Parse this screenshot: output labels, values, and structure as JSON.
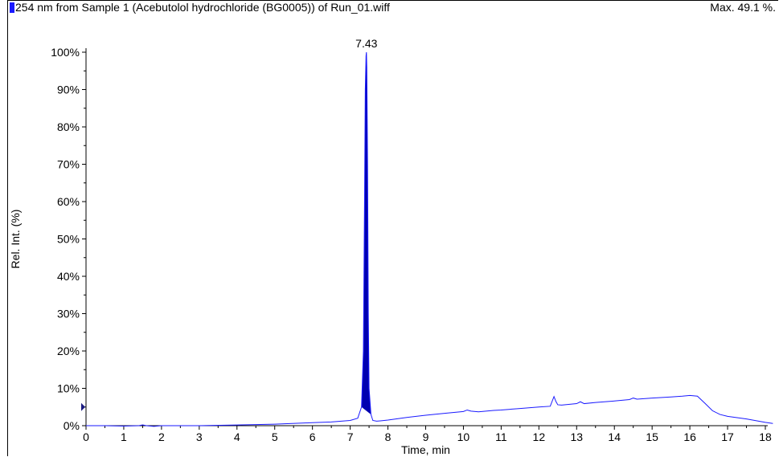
{
  "header": {
    "title": "254 nm from Sample 1 (Acebutolol hydrochloride (BG0005)) of Run_01.wiff",
    "max_label": "Max. 49.1 %."
  },
  "colors": {
    "trace": "#1a1aff",
    "peak_fill": "#0000b0"
  },
  "chart_data": {
    "type": "line",
    "title": "254 nm from Sample 1 (Acebutolol hydrochloride (BG0005)) of Run_01.wiff",
    "xlabel": "Time, min",
    "ylabel": "Rel. Int. (%)",
    "xlim": [
      0,
      18.2
    ],
    "ylim": [
      0,
      100
    ],
    "x_ticks": [
      0,
      1,
      2,
      3,
      4,
      5,
      6,
      7,
      8,
      9,
      10,
      11,
      12,
      13,
      14,
      15,
      16,
      17,
      18
    ],
    "y_ticks": [
      0,
      10,
      20,
      30,
      40,
      50,
      60,
      70,
      80,
      90,
      100
    ],
    "y_tick_format": "%",
    "grid": false,
    "series": [
      {
        "x": [
          0.0,
          0.5,
          1.0,
          1.4,
          1.5,
          1.6,
          1.8,
          2.0,
          3.0,
          4.0,
          5.0,
          6.0,
          6.5,
          7.0,
          7.2,
          7.3,
          7.35,
          7.38,
          7.4,
          7.42,
          7.43,
          7.44,
          7.46,
          7.48,
          7.5,
          7.55,
          7.6,
          7.7,
          7.8,
          8.0,
          8.5,
          9.0,
          9.5,
          10.0,
          10.1,
          10.2,
          10.4,
          10.8,
          11.0,
          11.5,
          12.0,
          12.3,
          12.4,
          12.45,
          12.5,
          12.6,
          13.0,
          13.1,
          13.2,
          13.5,
          14.0,
          14.4,
          14.5,
          14.6,
          15.0,
          15.5,
          15.8,
          16.0,
          16.2,
          16.4,
          16.6,
          16.8,
          17.0,
          17.5,
          18.0,
          18.2
        ],
        "y": [
          0,
          0,
          -0.1,
          0,
          0.2,
          0,
          -0.2,
          0,
          0,
          0.2,
          0.4,
          0.8,
          1.0,
          1.4,
          2.0,
          5,
          20,
          60,
          90,
          99,
          100,
          96,
          70,
          30,
          10,
          3,
          1.4,
          1.2,
          1.3,
          1.5,
          2.2,
          2.8,
          3.3,
          3.8,
          4.2,
          3.9,
          3.7,
          4.1,
          4.2,
          4.6,
          5.0,
          5.2,
          7.8,
          6.5,
          5.6,
          5.5,
          5.9,
          6.4,
          5.9,
          6.2,
          6.6,
          7.0,
          7.4,
          7.1,
          7.4,
          7.7,
          7.9,
          8.1,
          7.9,
          6.0,
          4.0,
          3.0,
          2.5,
          1.8,
          0.9,
          0.6
        ]
      }
    ],
    "annotations": [
      {
        "text": "7.43",
        "x": 7.43,
        "y": 100
      }
    ]
  }
}
